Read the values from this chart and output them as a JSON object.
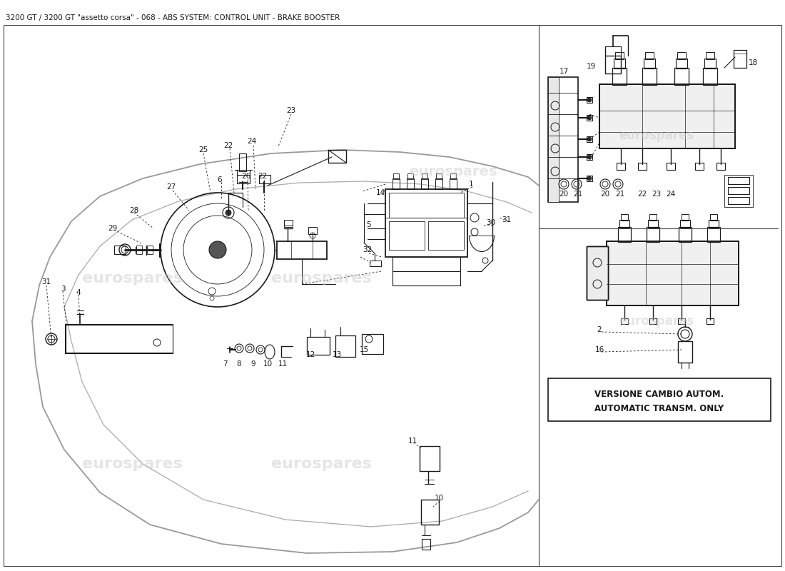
{
  "title": "3200 GT / 3200 GT \"assetto corsa\" - 068 - ABS SYSTEM: CONTROL UNIT - BRAKE BOOSTER",
  "title_fontsize": 7.5,
  "bg_color": "#ffffff",
  "watermark_text": "eurospares",
  "watermark_color": "#cccccc",
  "watermark_alpha": 0.5,
  "line_color": "#1a1a1a",
  "label_fontsize": 7.5,
  "figsize": [
    11.0,
    8.0
  ],
  "dpi": 100,
  "version_text_line1": "VERSIONE CAMBIO AUTOM.",
  "version_text_line2": "AUTOMATIC TRANSM. ONLY",
  "version_fontsize": 8.5
}
